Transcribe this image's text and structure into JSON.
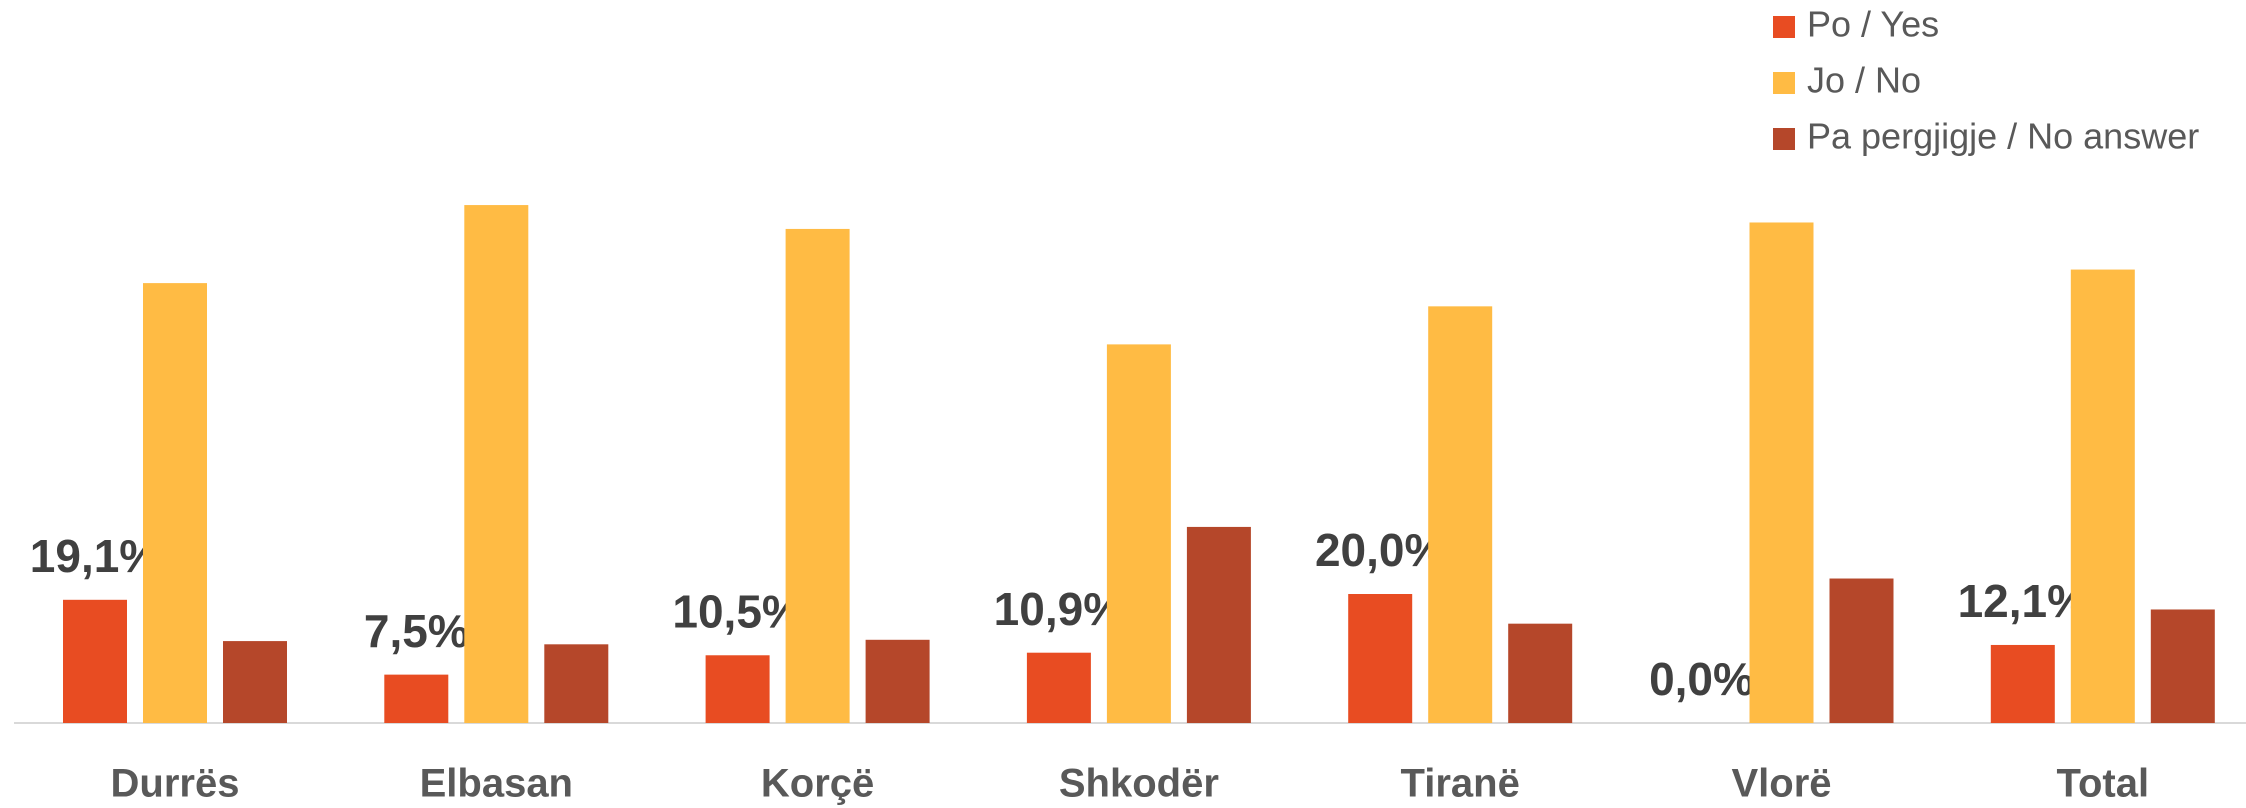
{
  "chart_data": {
    "type": "bar",
    "categories": [
      "Durrës",
      "Elbasan",
      "Korçë",
      "Shkodër",
      "Tiranë",
      "Vlorë",
      "Total"
    ],
    "series": [
      {
        "name": "Po / Yes",
        "color": "#E84C22",
        "values": [
          19.1,
          7.5,
          10.5,
          10.9,
          20.0,
          0.0,
          12.1
        ],
        "value_labels": [
          "19,1%",
          "7,5%",
          "10,5%",
          "10,9%",
          "20,0%",
          "0,0%",
          "12,1%"
        ]
      },
      {
        "name": "Jo / No",
        "color": "#FFBB44",
        "values": [
          68.2,
          80.3,
          76.6,
          58.7,
          64.6,
          77.6,
          70.3
        ]
      },
      {
        "name": "Pa pergjigje / No answer",
        "color": "#B5472A",
        "values": [
          12.7,
          12.2,
          12.9,
          30.4,
          15.4,
          22.4,
          17.6
        ]
      }
    ],
    "ylim": [
      0,
      100
    ],
    "legend": "top-right"
  }
}
